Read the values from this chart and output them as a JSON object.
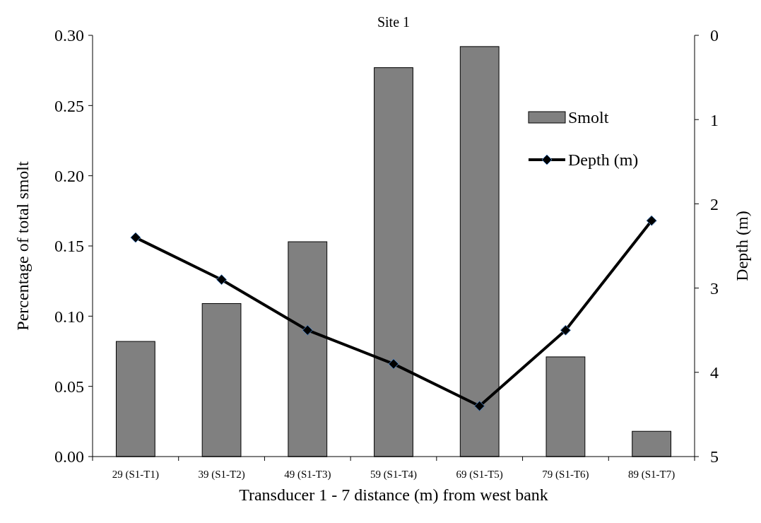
{
  "chart_data": {
    "type": "bar",
    "title": "Site 1",
    "xlabel": "Transducer 1 - 7 distance (m) from west bank",
    "ylabel": "Percentage of total smolt",
    "y2label": "Depth (m)",
    "categories": [
      "29 (S1-T1)",
      "39 (S1-T2)",
      "49 (S1-T3)",
      "59 (S1-T4)",
      "69 (S1-T5)",
      "79 (S1-T6)",
      "89 (S1-T7)"
    ],
    "series": [
      {
        "name": "Smolt",
        "color": "#808080",
        "values": [
          0.082,
          0.109,
          0.153,
          0.277,
          0.292,
          0.071,
          0.018
        ]
      },
      {
        "name": "Depth (m)",
        "type": "line",
        "axis": "y2",
        "color": "#000000",
        "marker": "diamond",
        "values": [
          2.4,
          2.9,
          3.5,
          3.9,
          4.4,
          3.5,
          2.2
        ]
      }
    ],
    "ylim": [
      0,
      0.3
    ],
    "yticks": [
      {
        "value": 0,
        "label": "0.00"
      },
      {
        "value": 0.05,
        "label": "0.05"
      },
      {
        "value": 0.1,
        "label": "0.10"
      },
      {
        "value": 0.15,
        "label": "0.15"
      },
      {
        "value": 0.2,
        "label": "0.20"
      },
      {
        "value": 0.25,
        "label": "0.25"
      },
      {
        "value": 0.3,
        "label": "0.30"
      }
    ],
    "y2lim": [
      5,
      0
    ],
    "y2ticks": [
      0,
      1,
      2,
      3,
      4,
      5
    ],
    "legend": "top right",
    "grid": false
  }
}
